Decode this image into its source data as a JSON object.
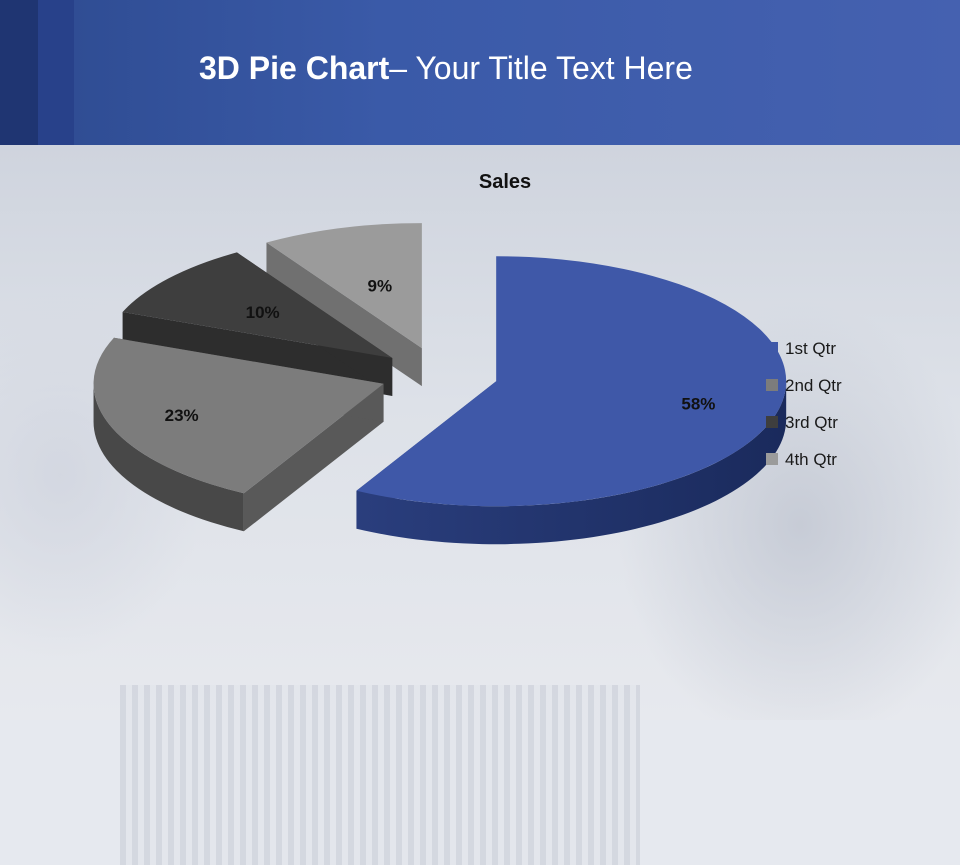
{
  "header": {
    "title_bold": "3D Pie Chart",
    "title_rest": "– Your Title Text Here"
  },
  "chart_data": {
    "type": "pie",
    "title": "Sales",
    "categories": [
      "1st Qtr",
      "2nd Qtr",
      "3rd Qtr",
      "4th Qtr"
    ],
    "values": [
      58,
      23,
      10,
      9
    ],
    "data_labels": [
      "58%",
      "23%",
      "10%",
      "9%"
    ],
    "legend_position": "right",
    "colors": [
      "#3f58a8",
      "#7c7c7c",
      "#3e3e3e",
      "#9b9b9b"
    ]
  }
}
